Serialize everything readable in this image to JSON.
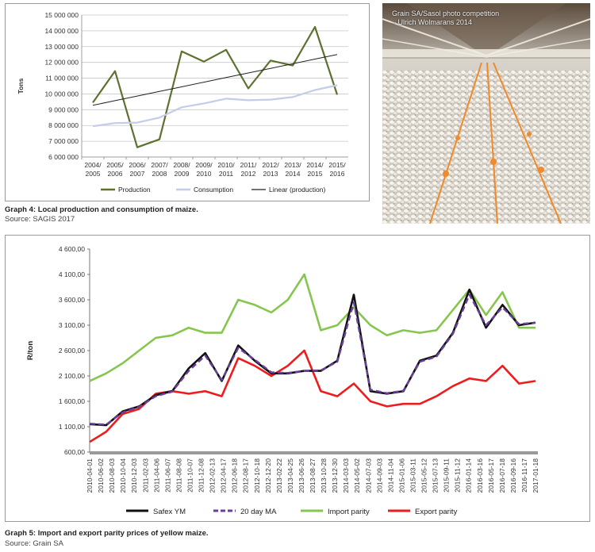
{
  "graph4": {
    "caption": "Graph 4: Local production and consumption of maize.",
    "source": "Source: SAGIS 2017"
  },
  "graph5": {
    "caption": "Graph 5: Import and export parity prices of yellow maize.",
    "source": "Source: Grain SA"
  },
  "photo": {
    "credit_line1": "Grain SA/Sasol photo competition",
    "credit_line2": "– Ulrich Wolmarans 2014"
  },
  "colors": {
    "production": "#5e7230",
    "consumption": "#c3cde8",
    "linear": "#222222",
    "safex": "#111111",
    "ma": "#6a3fa0",
    "import": "#86c64f",
    "export": "#ee1c1c"
  },
  "chart_data": [
    {
      "type": "line",
      "ylabel": "Tons",
      "ylim": [
        6000000,
        15000000
      ],
      "yticks": [
        "6 000 000",
        "7 000 000",
        "8 000 000",
        "9 000 000",
        "10 000 000",
        "11 000 000",
        "12 000 000",
        "13 000 000",
        "14 000 000",
        "15 000 000"
      ],
      "categories": [
        "2004/ 2005",
        "2005/ 2006",
        "2006/ 2007",
        "2007/ 2008",
        "2008/ 2009",
        "2009/ 2010",
        "2010/ 2011",
        "2011/ 2012",
        "2012/ 2013",
        "2013/ 2014",
        "2014/ 2015",
        "2015/ 2016"
      ],
      "grid": true,
      "legend_position": "bottom",
      "series": [
        {
          "name": "Production",
          "values": [
            9450000,
            11450000,
            6620000,
            7120000,
            12700000,
            12050000,
            12800000,
            10350000,
            12120000,
            11800000,
            14250000,
            9950000
          ]
        },
        {
          "name": "Consumption",
          "values": [
            7950000,
            8150000,
            8180000,
            8500000,
            9150000,
            9400000,
            9700000,
            9600000,
            9640000,
            9800000,
            10250000,
            10550000
          ]
        },
        {
          "name": "Linear (production)",
          "values": [
            9280000,
            9573000,
            9865000,
            10158000,
            10451000,
            10744000,
            11036000,
            11329000,
            11622000,
            11915000,
            12207000,
            12500000
          ]
        }
      ]
    },
    {
      "type": "line",
      "ylabel": "R/ton",
      "ylim": [
        600,
        4600
      ],
      "yticks": [
        "600,00",
        "1 100,00",
        "1 600,00",
        "2 100,00",
        "2 600,00",
        "3 100,00",
        "3 600,00",
        "4 100,00",
        "4 600,00"
      ],
      "x_tick_labels": [
        "2010-04-01",
        "2010-06-02",
        "2010-08-03",
        "2010-10-04",
        "2010-12-03",
        "2011-02-03",
        "2011-04-06",
        "2011-06-07",
        "2011-08-08",
        "2011-10-07",
        "2011-12-08",
        "2012-02-13",
        "2012-04-17",
        "2012-06-18",
        "2012-08-17",
        "2012-10-18",
        "2012-12-20",
        "2013-02-22",
        "2013-04-25",
        "2013-06-26",
        "2013-08-27",
        "2013-10-28",
        "2013-12-30",
        "2014-03-03",
        "2014-05-02",
        "2014-07-03",
        "2014-09-03",
        "2014-11-04",
        "2015-01-06",
        "2015-03-11",
        "2015-05-12",
        "2015-07-13",
        "2015-09-11",
        "2015-11-12",
        "2016-01-14",
        "2016-03-16",
        "2016-05-17",
        "2016-07-18",
        "2016-09-16",
        "2016-11-17",
        "2017-01-18"
      ],
      "grid": false,
      "legend_position": "bottom",
      "x": [
        "2010-04",
        "2010-07",
        "2010-10",
        "2011-01",
        "2011-04",
        "2011-07",
        "2011-10",
        "2012-01",
        "2012-04",
        "2012-07",
        "2012-10",
        "2013-01",
        "2013-04",
        "2013-07",
        "2013-10",
        "2014-01",
        "2014-04",
        "2014-07",
        "2014-10",
        "2015-01",
        "2015-04",
        "2015-07",
        "2015-10",
        "2016-01",
        "2016-04",
        "2016-07",
        "2016-10",
        "2017-01"
      ],
      "series": [
        {
          "name": "Safex YM",
          "values": [
            1150,
            1130,
            1400,
            1500,
            1720,
            1800,
            2250,
            2550,
            2000,
            2700,
            2400,
            2150,
            2150,
            2200,
            2200,
            2400,
            3700,
            1800,
            1750,
            1800,
            2400,
            2500,
            2950,
            3800,
            3050,
            3500,
            3100,
            3150
          ]
        },
        {
          "name": "20 day MA",
          "values": [
            1160,
            1140,
            1380,
            1490,
            1700,
            1790,
            2200,
            2500,
            2020,
            2650,
            2420,
            2170,
            2160,
            2200,
            2210,
            2380,
            3550,
            1830,
            1760,
            1810,
            2380,
            2480,
            2930,
            3700,
            3100,
            3450,
            3120,
            3150
          ]
        },
        {
          "name": "Import parity",
          "values": [
            2000,
            2150,
            2350,
            2600,
            2850,
            2900,
            3050,
            2950,
            2950,
            3600,
            3500,
            3350,
            3600,
            4100,
            3000,
            3100,
            3450,
            3100,
            2900,
            3000,
            2950,
            3000,
            3400,
            3800,
            3300,
            3750,
            3050,
            3050
          ]
        },
        {
          "name": "Export parity",
          "values": [
            800,
            1000,
            1350,
            1450,
            1750,
            1800,
            1750,
            1800,
            1700,
            2450,
            2300,
            2100,
            2300,
            2600,
            1800,
            1700,
            1950,
            1600,
            1500,
            1550,
            1550,
            1700,
            1900,
            2050,
            2000,
            2300,
            1950,
            2000
          ]
        }
      ]
    }
  ]
}
